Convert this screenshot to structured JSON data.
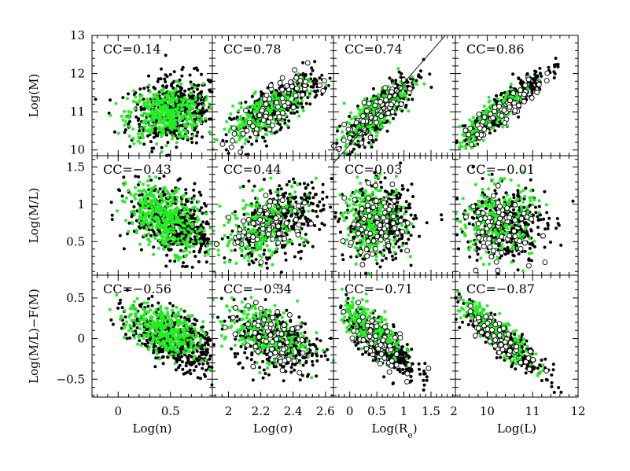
{
  "colors": {
    "black": "#000000",
    "green": "#22ee22",
    "open": "#ffffff",
    "frame": "#000000"
  },
  "chart_data": {
    "type": "scatter",
    "layout": "3x4 grid of scatter panels sharing rows (y) and columns (x)",
    "marker_groups": [
      "black filled dots",
      "green filled dots",
      "open circles"
    ],
    "columns": [
      {
        "xlabel": "Log(n)",
        "xlim": [
          -0.25,
          0.9
        ],
        "xticks": [
          0,
          0.5
        ],
        "xtick_labels": [
          "0",
          "0.5"
        ]
      },
      {
        "xlabel": "Log(σ)",
        "xlim": [
          1.9,
          2.65
        ],
        "xticks": [
          2,
          2.2,
          2.4,
          2.6
        ],
        "xtick_labels": [
          "2",
          "2.2",
          "2.4",
          "2.6"
        ]
      },
      {
        "xlabel": "Log(Re)",
        "xlim": [
          -0.3,
          1.95
        ],
        "xticks": [
          0,
          0.5,
          1,
          1.5
        ],
        "xtick_labels": [
          "0",
          "0.5",
          "1",
          "1.5"
        ]
      },
      {
        "xlabel": "Log(L)",
        "xlim": [
          9.3,
          12.0
        ],
        "xticks": [
          10,
          11,
          12
        ],
        "xtick_labels": [
          "10",
          "11",
          "12"
        ],
        "left_edge_label": "2"
      }
    ],
    "rows": [
      {
        "ylabel": "Log(M)",
        "ylim": [
          9.85,
          13.0
        ],
        "yticks": [
          10,
          11,
          12,
          13
        ],
        "ytick_labels": [
          "10",
          "11",
          "12",
          "13"
        ]
      },
      {
        "ylabel": "Log(M/L)",
        "ylim": [
          0.05,
          1.65
        ],
        "yticks": [
          0.5,
          1,
          1.5
        ],
        "ytick_labels": [
          "0.5",
          "1",
          "1.5"
        ]
      },
      {
        "ylabel": "Log(M/L)−F(M)",
        "ylim": [
          -0.72,
          0.78
        ],
        "yticks": [
          -0.5,
          0,
          0.5
        ],
        "ytick_labels": [
          "−0.5",
          "0",
          "0.5"
        ]
      }
    ],
    "panels": [
      {
        "row": 0,
        "col": 0,
        "label": "CC=0.14",
        "black": {
          "n": 480,
          "center": [
            0.55,
            11.05
          ],
          "sx": 0.22,
          "sy": 0.45,
          "corr": 0.15
        },
        "green": {
          "n": 380,
          "center": [
            0.45,
            10.95
          ],
          "sx": 0.18,
          "sy": 0.35,
          "corr": 0.12
        },
        "open": {
          "n": 0
        }
      },
      {
        "row": 0,
        "col": 1,
        "label": "CC=0.78",
        "black": {
          "n": 380,
          "center": [
            2.3,
            11.15
          ],
          "sx": 0.14,
          "sy": 0.45,
          "corr": 0.78
        },
        "green": {
          "n": 260,
          "center": [
            2.22,
            10.95
          ],
          "sx": 0.13,
          "sy": 0.38,
          "corr": 0.75
        },
        "open": {
          "n": 70,
          "center": [
            2.25,
            11.0
          ],
          "sx": 0.12,
          "sy": 0.45,
          "corr": 0.7
        }
      },
      {
        "row": 0,
        "col": 2,
        "label": "CC=0.74",
        "black": {
          "n": 380,
          "center": [
            0.6,
            11.1
          ],
          "sx": 0.32,
          "sy": 0.5,
          "corr": 0.82
        },
        "green": {
          "n": 260,
          "center": [
            0.45,
            10.95
          ],
          "sx": 0.28,
          "sy": 0.4,
          "corr": 0.78
        },
        "open": {
          "n": 70,
          "center": [
            0.5,
            11.0
          ],
          "sx": 0.35,
          "sy": 0.45,
          "corr": 0.85
        },
        "line": {
          "x": [
            -0.3,
            1.95
          ],
          "y": [
            9.65,
            13.3
          ]
        }
      },
      {
        "row": 0,
        "col": 3,
        "label": "CC=0.86",
        "black": {
          "n": 380,
          "center": [
            10.4,
            11.15
          ],
          "sx": 0.45,
          "sy": 0.48,
          "corr": 0.92
        },
        "green": {
          "n": 260,
          "center": [
            10.2,
            10.95
          ],
          "sx": 0.4,
          "sy": 0.4,
          "corr": 0.9
        },
        "open": {
          "n": 70,
          "center": [
            10.3,
            11.0
          ],
          "sx": 0.45,
          "sy": 0.45,
          "corr": 0.92
        }
      },
      {
        "row": 1,
        "col": 0,
        "label": "CC=−0.43",
        "black": {
          "n": 480,
          "center": [
            0.55,
            0.75
          ],
          "sx": 0.22,
          "sy": 0.25,
          "corr": -0.45
        },
        "green": {
          "n": 380,
          "center": [
            0.45,
            0.82
          ],
          "sx": 0.18,
          "sy": 0.22,
          "corr": -0.4
        },
        "open": {
          "n": 0
        }
      },
      {
        "row": 1,
        "col": 1,
        "label": "CC=0.44",
        "black": {
          "n": 380,
          "center": [
            2.3,
            0.75
          ],
          "sx": 0.14,
          "sy": 0.26,
          "corr": 0.45
        },
        "green": {
          "n": 260,
          "center": [
            2.22,
            0.72
          ],
          "sx": 0.13,
          "sy": 0.24,
          "corr": 0.42
        },
        "open": {
          "n": 70,
          "center": [
            2.25,
            0.72
          ],
          "sx": 0.12,
          "sy": 0.22,
          "corr": 0.45
        }
      },
      {
        "row": 1,
        "col": 2,
        "label": "CC=0.03",
        "black": {
          "n": 380,
          "center": [
            0.55,
            0.75
          ],
          "sx": 0.32,
          "sy": 0.24,
          "corr": 0.03
        },
        "green": {
          "n": 260,
          "center": [
            0.45,
            0.78
          ],
          "sx": 0.28,
          "sy": 0.24,
          "corr": 0.03
        },
        "open": {
          "n": 70,
          "center": [
            0.5,
            0.72
          ],
          "sx": 0.32,
          "sy": 0.22,
          "corr": 0.0
        }
      },
      {
        "row": 1,
        "col": 3,
        "label": "CC=−0.01",
        "black": {
          "n": 380,
          "center": [
            10.4,
            0.75
          ],
          "sx": 0.45,
          "sy": 0.25,
          "corr": -0.01
        },
        "green": {
          "n": 260,
          "center": [
            10.2,
            0.78
          ],
          "sx": 0.4,
          "sy": 0.24,
          "corr": 0.0
        },
        "open": {
          "n": 70,
          "center": [
            10.3,
            0.72
          ],
          "sx": 0.42,
          "sy": 0.22,
          "corr": 0.0
        }
      },
      {
        "row": 2,
        "col": 0,
        "label": "CC=−0.56",
        "black": {
          "n": 480,
          "center": [
            0.55,
            -0.02
          ],
          "sx": 0.22,
          "sy": 0.2,
          "corr": -0.56
        },
        "green": {
          "n": 380,
          "center": [
            0.45,
            0.08
          ],
          "sx": 0.18,
          "sy": 0.17,
          "corr": -0.5
        },
        "open": {
          "n": 0
        }
      },
      {
        "row": 2,
        "col": 1,
        "label": "CC=−0.34",
        "black": {
          "n": 380,
          "center": [
            2.3,
            -0.02
          ],
          "sx": 0.14,
          "sy": 0.2,
          "corr": -0.35
        },
        "green": {
          "n": 260,
          "center": [
            2.22,
            0.08
          ],
          "sx": 0.13,
          "sy": 0.18,
          "corr": -0.3
        },
        "open": {
          "n": 70,
          "center": [
            2.25,
            0.0
          ],
          "sx": 0.12,
          "sy": 0.2,
          "corr": -0.35
        }
      },
      {
        "row": 2,
        "col": 2,
        "label": "CC=−0.71",
        "black": {
          "n": 380,
          "center": [
            0.6,
            -0.05
          ],
          "sx": 0.32,
          "sy": 0.2,
          "corr": -0.75
        },
        "green": {
          "n": 260,
          "center": [
            0.42,
            0.1
          ],
          "sx": 0.28,
          "sy": 0.17,
          "corr": -0.7
        },
        "open": {
          "n": 70,
          "center": [
            0.5,
            0.0
          ],
          "sx": 0.32,
          "sy": 0.2,
          "corr": -0.75
        }
      },
      {
        "row": 2,
        "col": 3,
        "label": "CC=−0.87",
        "black": {
          "n": 380,
          "center": [
            10.4,
            -0.05
          ],
          "sx": 0.45,
          "sy": 0.22,
          "corr": -0.9
        },
        "green": {
          "n": 260,
          "center": [
            10.2,
            0.08
          ],
          "sx": 0.4,
          "sy": 0.2,
          "corr": -0.88
        },
        "open": {
          "n": 70,
          "center": [
            10.3,
            0.0
          ],
          "sx": 0.42,
          "sy": 0.2,
          "corr": -0.9
        }
      }
    ]
  }
}
